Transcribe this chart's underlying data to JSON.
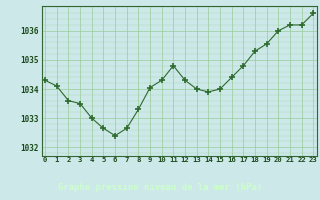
{
  "hours": [
    0,
    1,
    2,
    3,
    4,
    5,
    6,
    7,
    8,
    9,
    10,
    11,
    12,
    13,
    14,
    15,
    16,
    17,
    18,
    19,
    20,
    21,
    22,
    23
  ],
  "pressure": [
    1034.3,
    1034.1,
    1033.6,
    1033.5,
    1033.0,
    1032.65,
    1032.4,
    1032.65,
    1033.3,
    1034.05,
    1034.3,
    1034.8,
    1034.3,
    1034.0,
    1033.9,
    1034.0,
    1034.4,
    1034.8,
    1035.3,
    1035.55,
    1036.0,
    1036.2,
    1036.2,
    1036.6
  ],
  "line_color": "#2d6a2d",
  "marker_color": "#2d6a2d",
  "bg_color": "#cce8e8",
  "grid_color": "#99cc99",
  "text_color": "#1a4a1a",
  "xlabel": "Graphe pression niveau de la mer (hPa)",
  "xlabel_bg": "#336633",
  "xlabel_text_color": "#ccffcc",
  "ylim": [
    1031.7,
    1036.85
  ],
  "yticks": [
    1032,
    1033,
    1034,
    1035,
    1036
  ],
  "xtick_labels": [
    "0",
    "1",
    "2",
    "3",
    "4",
    "5",
    "6",
    "7",
    "8",
    "9",
    "10",
    "11",
    "12",
    "13",
    "14",
    "15",
    "16",
    "17",
    "18",
    "19",
    "20",
    "21",
    "22",
    "23"
  ],
  "spine_color": "#336633"
}
